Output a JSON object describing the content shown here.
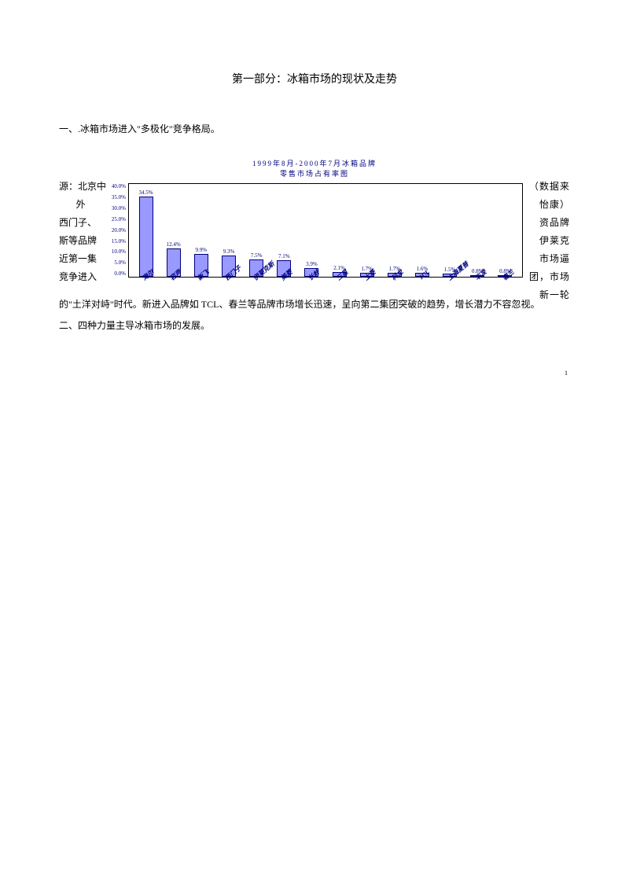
{
  "title": "第一部分：冰箱市场的现状及走势",
  "section1_heading": "一、.冰箱市场进入\"多极化\"竞争格局。",
  "chart": {
    "type": "bar",
    "title_line1": "1999年8月-2000年7月冰箱品牌",
    "title_line2": "零售市场占有率图",
    "ymax": 40.0,
    "ytick_step": 5.0,
    "yticks": [
      "40.0%",
      "35.0%",
      "30.0%",
      "25.0%",
      "20.0%",
      "15.0%",
      "10.0%",
      "5.0%",
      "0.0%"
    ],
    "bar_color": "#9999ff",
    "bar_border": "#000080",
    "plot_border": "#000000",
    "background": "#ffffff",
    "text_color": "#000080",
    "categories": [
      "海尔",
      "容声",
      "新飞",
      "西门子",
      "伊莱克斯",
      "美菱",
      "长岭",
      "三星",
      "上菱",
      "科龙",
      "TCL",
      "上海夏普",
      "华凌",
      "春兰"
    ],
    "values": [
      34.5,
      12.4,
      9.9,
      9.3,
      7.5,
      7.1,
      3.9,
      2.1,
      1.7,
      1.7,
      1.6,
      1.5,
      0.8,
      0.8
    ],
    "value_labels": [
      "34.5%",
      "12.4%",
      "9.9%",
      "9.3%",
      "7.5%",
      "7.1%",
      "3.9%",
      "2.1%",
      "1.7%",
      "1.7%",
      "1.6%",
      "1.5%",
      "0.8%",
      "0.8%"
    ]
  },
  "wrap_left": [
    "源：北京中",
    "外",
    "西门子、",
    "斯等品牌",
    "近第一集",
    "竞争进入"
  ],
  "wrap_right": [
    "（数据来",
    "怡康）",
    "资品牌",
    "伊莱克",
    "市场逼",
    "团，市场",
    "新一轮"
  ],
  "continuing": "的\"土洋对峙\"时代。新进入品牌如 TCL、春兰等品牌市场增长迅速，呈向第二集团突破的趋势，增长潜力不容忽视。",
  "section2_heading": "二、四种力量主导冰箱市场的发展。",
  "page_number": "1"
}
